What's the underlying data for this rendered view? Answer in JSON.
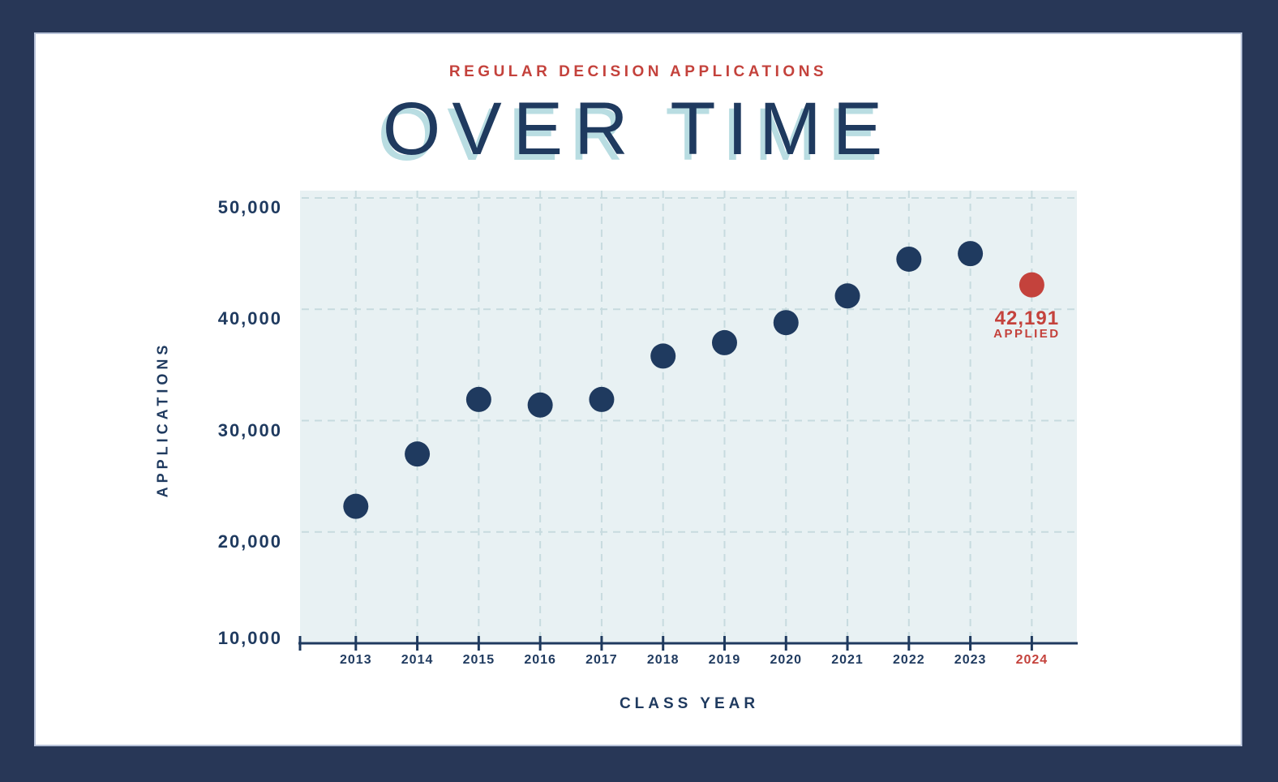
{
  "header": {
    "subtitle": "REGULAR DECISION APPLICATIONS",
    "title": "OVER TIME"
  },
  "colors": {
    "frame_navy": "#283757",
    "ink_navy": "#1f3a5f",
    "accent_red": "#c4423c",
    "plot_background": "#e8f1f3",
    "gridline": "#c7dbdf",
    "title_shadow_blue": "#b9dde2"
  },
  "chart_data": {
    "type": "scatter",
    "title": "OVER TIME",
    "subtitle": "REGULAR DECISION APPLICATIONS",
    "xlabel": "CLASS YEAR",
    "ylabel": "APPLICATIONS",
    "x": [
      2013,
      2014,
      2015,
      2016,
      2017,
      2018,
      2019,
      2020,
      2021,
      2022,
      2023,
      2024
    ],
    "values": [
      22300,
      27000,
      31900,
      31400,
      31900,
      35800,
      37000,
      38800,
      41200,
      44500,
      45000,
      42191
    ],
    "yticks": [
      {
        "value": 10000,
        "label": "10,000"
      },
      {
        "value": 20000,
        "label": "20,000"
      },
      {
        "value": 30000,
        "label": "30,000"
      },
      {
        "value": 40000,
        "label": "40,000"
      },
      {
        "value": 50000,
        "label": "50,000"
      }
    ],
    "ylim": [
      10000,
      50000
    ],
    "grid": true,
    "legend": null,
    "highlight": {
      "year": 2024,
      "value": 42191,
      "label_value": "42,191",
      "label_caption": "APPLIED"
    }
  }
}
